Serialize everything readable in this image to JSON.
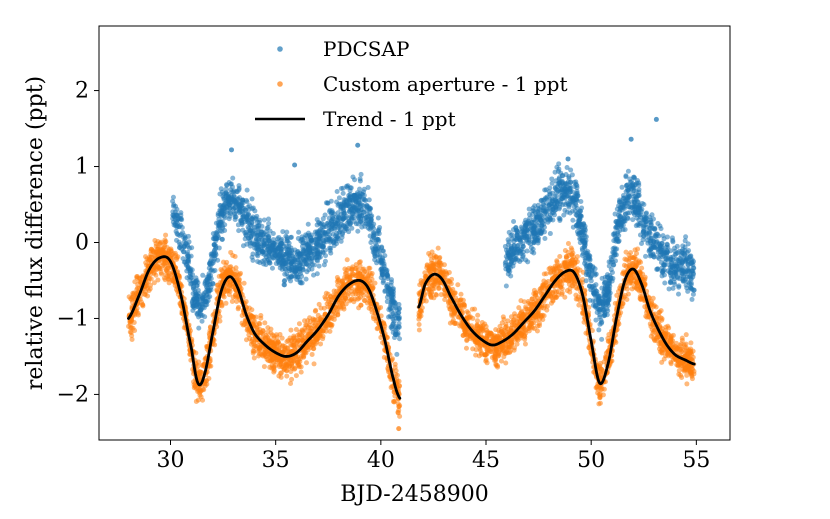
{
  "chart_data": {
    "type": "scatter",
    "title": "",
    "xlabel": "BJD-2458900",
    "ylabel": "relative flux difference (ppt)",
    "xlim": [
      26.6,
      56.6
    ],
    "ylim": [
      -2.6,
      2.85
    ],
    "x_ticks": [
      30,
      35,
      40,
      45,
      50,
      55
    ],
    "y_ticks": [
      -2,
      -1,
      0,
      1,
      2
    ],
    "legend_position": "top-center",
    "legend": [
      "PDCSAP",
      "Custom aperture - 1 ppt",
      "Trend - 1 ppt"
    ],
    "colors": {
      "pdcsap": "#1f77b4",
      "custom": "#ff7f0e",
      "trend": "#000000"
    },
    "series": [
      {
        "name": "PDCSAP",
        "kind": "scatter",
        "segments": [
          {
            "x": [
              30.1,
              30.4,
              30.8,
              31.2,
              31.5,
              31.8,
              32.2,
              32.7,
              33.2,
              33.8,
              34.5,
              35.0,
              35.5,
              36.0,
              36.5,
              37.0,
              37.5,
              38.0,
              38.5,
              38.9,
              39.3,
              39.7,
              40.1,
              40.5,
              40.9
            ],
            "y": [
              0.4,
              0.2,
              -0.2,
              -0.7,
              -0.85,
              -0.5,
              0.1,
              0.55,
              0.5,
              0.2,
              0.0,
              -0.1,
              -0.2,
              -0.25,
              -0.15,
              0.0,
              0.15,
              0.3,
              0.45,
              0.5,
              0.45,
              0.1,
              -0.3,
              -0.8,
              -1.1
            ]
          },
          {
            "x": [
              45.9,
              46.3,
              46.8,
              47.3,
              47.8,
              48.3,
              48.8,
              49.2,
              49.6,
              50.0,
              50.4,
              50.8,
              51.2,
              51.6,
              52.0,
              52.5,
              53.0,
              53.5,
              54.0,
              54.5,
              54.9
            ],
            "y": [
              -0.3,
              -0.1,
              0.05,
              0.2,
              0.4,
              0.6,
              0.65,
              0.55,
              0.1,
              -0.45,
              -0.85,
              -0.6,
              0.1,
              0.55,
              0.6,
              0.3,
              0.0,
              -0.2,
              -0.3,
              -0.35,
              -0.4
            ]
          }
        ],
        "outliers": [
          [
            32.9,
            1.22
          ],
          [
            35.9,
            1.02
          ],
          [
            38.9,
            1.28
          ],
          [
            48.9,
            1.1
          ],
          [
            51.9,
            1.36
          ],
          [
            53.1,
            1.62
          ]
        ],
        "spread": 0.15
      },
      {
        "name": "Custom aperture - 1 ppt",
        "kind": "scatter",
        "segments": [
          {
            "x": [
              28.0,
              28.5,
              29.0,
              29.5,
              30.0,
              30.5,
              31.0,
              31.3,
              31.6,
              32.0,
              32.4,
              32.8,
              33.2,
              33.6,
              34.0,
              34.5,
              35.0,
              35.5,
              36.0,
              36.5,
              37.0,
              37.5,
              38.0,
              38.5,
              39.0,
              39.4,
              39.8,
              40.2,
              40.6,
              40.9
            ],
            "y": [
              -1.0,
              -0.7,
              -0.35,
              -0.2,
              -0.25,
              -0.7,
              -1.4,
              -1.85,
              -1.75,
              -1.2,
              -0.65,
              -0.45,
              -0.6,
              -0.95,
              -1.2,
              -1.35,
              -1.45,
              -1.5,
              -1.45,
              -1.3,
              -1.15,
              -0.95,
              -0.7,
              -0.55,
              -0.5,
              -0.6,
              -0.9,
              -1.3,
              -1.8,
              -2.05
            ]
          },
          {
            "x": [
              41.8,
              42.1,
              42.5,
              42.9,
              43.3,
              43.8,
              44.3,
              44.8,
              45.3,
              45.8,
              46.3,
              46.8,
              47.3,
              47.8,
              48.3,
              48.8,
              49.2,
              49.6,
              50.0,
              50.4,
              50.8,
              51.2,
              51.6,
              52.0,
              52.4,
              52.8,
              53.2,
              53.6,
              54.0,
              54.5,
              54.9
            ],
            "y": [
              -0.85,
              -0.55,
              -0.42,
              -0.48,
              -0.7,
              -0.95,
              -1.15,
              -1.28,
              -1.35,
              -1.3,
              -1.2,
              -1.05,
              -0.9,
              -0.7,
              -0.5,
              -0.38,
              -0.4,
              -0.7,
              -1.3,
              -1.85,
              -1.6,
              -1.0,
              -0.5,
              -0.35,
              -0.55,
              -0.9,
              -1.15,
              -1.35,
              -1.48,
              -1.55,
              -1.6
            ]
          }
        ],
        "outliers": [
          [
            40.85,
            -2.45
          ]
        ],
        "spread": 0.13
      },
      {
        "name": "Trend - 1 ppt",
        "kind": "line",
        "segments": [
          {
            "x": [
              28.0,
              28.5,
              29.0,
              29.5,
              30.0,
              30.5,
              31.0,
              31.3,
              31.6,
              32.0,
              32.4,
              32.8,
              33.2,
              33.6,
              34.0,
              34.5,
              35.0,
              35.5,
              36.0,
              36.5,
              37.0,
              37.5,
              38.0,
              38.5,
              39.0,
              39.4,
              39.8,
              40.2,
              40.6,
              40.9
            ],
            "y": [
              -1.0,
              -0.7,
              -0.35,
              -0.2,
              -0.25,
              -0.7,
              -1.4,
              -1.85,
              -1.75,
              -1.2,
              -0.65,
              -0.45,
              -0.6,
              -0.95,
              -1.2,
              -1.35,
              -1.45,
              -1.5,
              -1.45,
              -1.3,
              -1.15,
              -0.95,
              -0.7,
              -0.55,
              -0.5,
              -0.6,
              -0.9,
              -1.3,
              -1.8,
              -2.05
            ]
          },
          {
            "x": [
              41.8,
              42.1,
              42.5,
              42.9,
              43.3,
              43.8,
              44.3,
              44.8,
              45.3,
              45.8,
              46.3,
              46.8,
              47.3,
              47.8,
              48.3,
              48.8,
              49.2,
              49.6,
              50.0,
              50.4,
              50.8,
              51.2,
              51.6,
              52.0,
              52.4,
              52.8,
              53.2,
              53.6,
              54.0,
              54.5,
              54.9
            ],
            "y": [
              -0.85,
              -0.55,
              -0.42,
              -0.48,
              -0.7,
              -0.95,
              -1.15,
              -1.28,
              -1.35,
              -1.3,
              -1.2,
              -1.05,
              -0.9,
              -0.7,
              -0.5,
              -0.38,
              -0.4,
              -0.7,
              -1.3,
              -1.85,
              -1.6,
              -1.0,
              -0.5,
              -0.35,
              -0.55,
              -0.9,
              -1.15,
              -1.35,
              -1.48,
              -1.55,
              -1.6
            ]
          }
        ]
      }
    ]
  }
}
